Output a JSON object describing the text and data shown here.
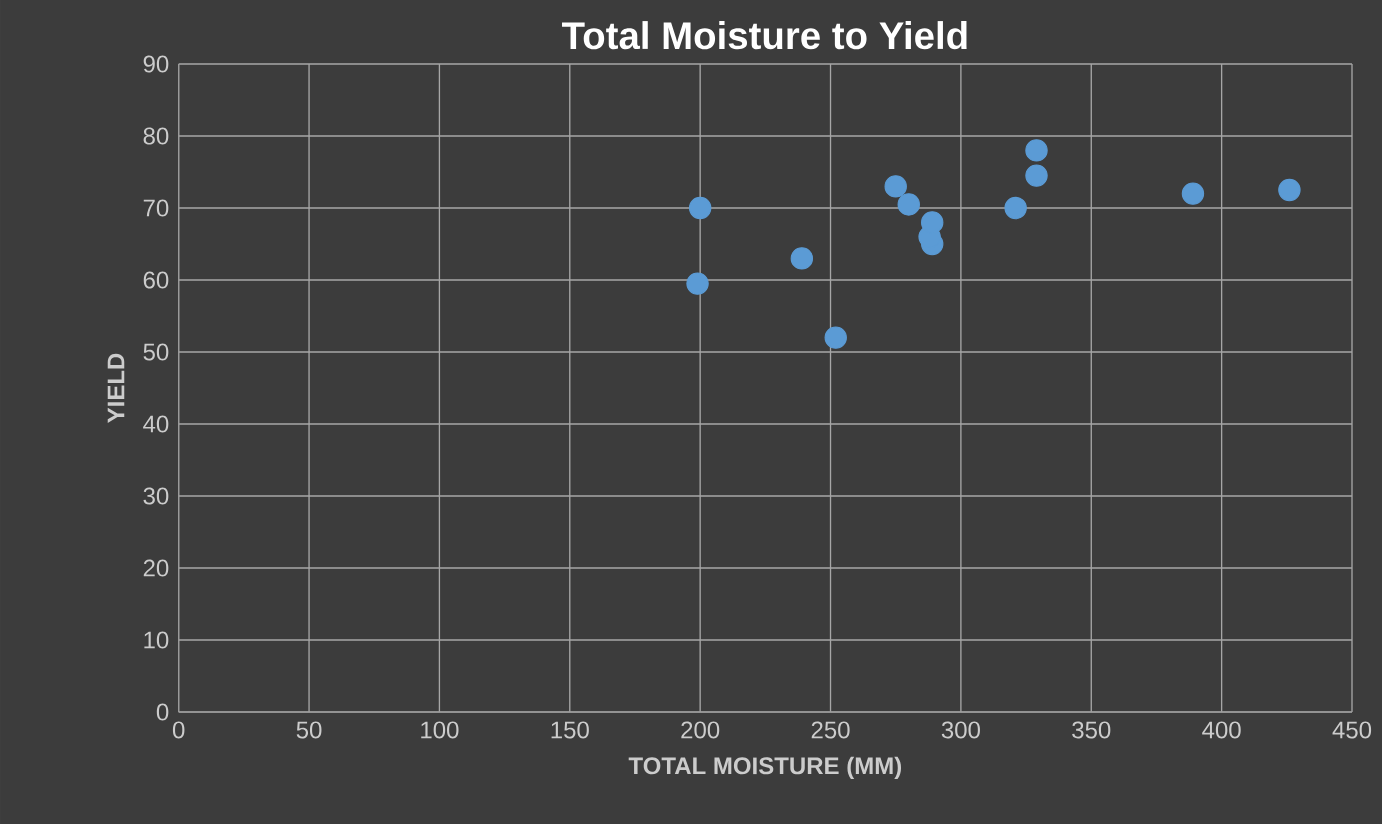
{
  "chart_data": {
    "type": "scatter",
    "title": "Total Moisture to Yield",
    "xlabel": "TOTAL MOISTURE (MM)",
    "ylabel": "YIELD",
    "x": [
      200,
      199,
      239,
      252,
      275,
      280,
      289,
      288,
      289,
      321,
      329,
      329,
      389,
      426
    ],
    "values": [
      70,
      59.5,
      63,
      52,
      73,
      70.5,
      68,
      66,
      65,
      70,
      78,
      74.5,
      72,
      72.5
    ],
    "color": "#5b9bd5",
    "grid": true,
    "xlim": [
      0,
      450
    ],
    "xticks": [
      0,
      50,
      100,
      150,
      200,
      250,
      300,
      350,
      400,
      450
    ],
    "ylim": [
      0,
      90
    ],
    "yticks": [
      0,
      10,
      20,
      30,
      40,
      50,
      60,
      70,
      80,
      90
    ]
  }
}
